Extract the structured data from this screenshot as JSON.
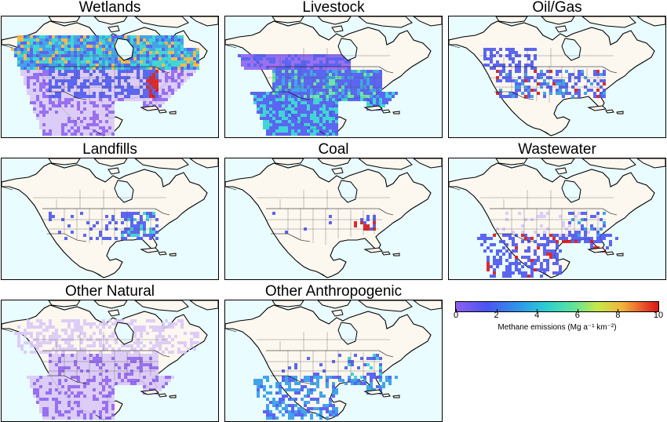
{
  "panels": [
    {
      "title": "Wetlands",
      "pattern": "wetlands"
    },
    {
      "title": "Livestock",
      "pattern": "livestock"
    },
    {
      "title": "Oil/Gas",
      "pattern": "oilgas"
    },
    {
      "title": "Landfills",
      "pattern": "landfills"
    },
    {
      "title": "Coal",
      "pattern": "coal"
    },
    {
      "title": "Wastewater",
      "pattern": "wastewater"
    },
    {
      "title": "Other Natural",
      "pattern": "othernatural"
    },
    {
      "title": "Other Anthropogenic",
      "pattern": "otheranthro"
    }
  ],
  "colorbar": {
    "min": 0,
    "max": 10,
    "ticks": [
      "0",
      "2",
      "4",
      "6",
      "8",
      "10"
    ],
    "label": "Methane emissions (Mg a⁻¹ km⁻²)",
    "colors": [
      "#8e60f0",
      "#4a55f0",
      "#2f9ae8",
      "#2cd0d0",
      "#5fe39a",
      "#c7e84a",
      "#f1b43c",
      "#ea5a2c",
      "#d81414"
    ]
  },
  "colors": {
    "ocean": "#e9fcff",
    "land": "#fcf7ef"
  }
}
